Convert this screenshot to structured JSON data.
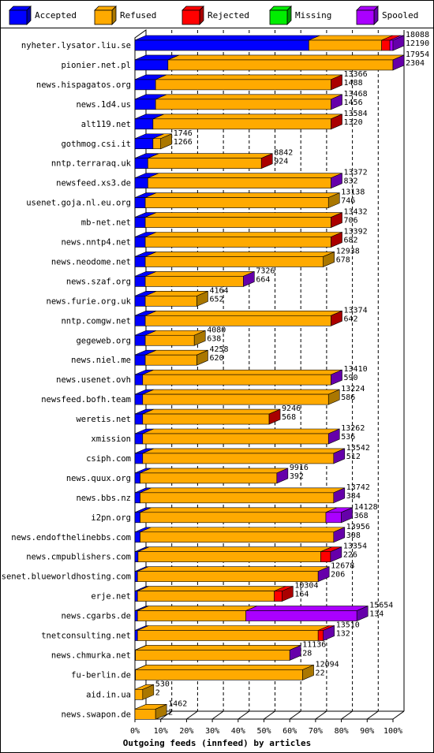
{
  "chart_data": {
    "type": "bar",
    "orientation": "horizontal",
    "stacked": true,
    "xlabel": "Outgoing feeds (innfeed) by articles",
    "xlim": [
      0,
      100
    ],
    "x_ticks": [
      "0%",
      "10%",
      "20%",
      "30%",
      "40%",
      "50%",
      "60%",
      "70%",
      "80%",
      "90%",
      "100%"
    ],
    "legend_position": "top",
    "legend": [
      {
        "key": "accepted",
        "label": "Accepted",
        "color": "#0000ff"
      },
      {
        "key": "refused",
        "label": "Refused",
        "color": "#ffaa00"
      },
      {
        "key": "rejected",
        "label": "Rejected",
        "color": "#ff0000"
      },
      {
        "key": "missing",
        "label": "Missing",
        "color": "#00ee00"
      },
      {
        "key": "spooled",
        "label": "Spooled",
        "color": "#aa00ff"
      }
    ],
    "rows": [
      {
        "name": "nyheter.lysator.liu.se",
        "total": "18088",
        "accepted": "12190",
        "pct": {
          "accepted": 67.4,
          "refused": 28.2,
          "rejected": 3.2,
          "missing": 0,
          "spooled": 1.2
        }
      },
      {
        "name": "pionier.net.pl",
        "total": "17954",
        "accepted": "2304",
        "pct": {
          "accepted": 12.8,
          "refused": 87.2,
          "rejected": 0,
          "missing": 0,
          "spooled": 0
        }
      },
      {
        "name": "news.hispagatos.org",
        "total": "13366",
        "accepted": "1488",
        "pct": {
          "accepted": 8,
          "refused": 68,
          "rejected": 0,
          "missing": 0,
          "spooled": 0
        }
      },
      {
        "name": "news.1d4.us",
        "total": "13468",
        "accepted": "1456",
        "pct": {
          "accepted": 8,
          "refused": 68,
          "rejected": 0,
          "missing": 0,
          "spooled": 0
        }
      },
      {
        "name": "alt119.net",
        "total": "13584",
        "accepted": "1320",
        "pct": {
          "accepted": 7,
          "refused": 69,
          "rejected": 0,
          "missing": 0,
          "spooled": 0
        }
      },
      {
        "name": "gothmog.csi.it",
        "total": "1746",
        "accepted": "1266",
        "pct": {
          "accepted": 7,
          "refused": 3,
          "rejected": 0,
          "missing": 0,
          "spooled": 0
        }
      },
      {
        "name": "nntp.terraraq.uk",
        "total": "8842",
        "accepted": "924",
        "pct": {
          "accepted": 5,
          "refused": 44,
          "rejected": 0,
          "missing": 0,
          "spooled": 0
        }
      },
      {
        "name": "newsfeed.xs3.de",
        "total": "13372",
        "accepted": "832",
        "pct": {
          "accepted": 5,
          "refused": 71,
          "rejected": 0,
          "missing": 0,
          "spooled": 0
        }
      },
      {
        "name": "usenet.goja.nl.eu.org",
        "total": "13138",
        "accepted": "746",
        "pct": {
          "accepted": 4,
          "refused": 71,
          "rejected": 0,
          "missing": 0,
          "spooled": 0
        }
      },
      {
        "name": "mb-net.net",
        "total": "13432",
        "accepted": "706",
        "pct": {
          "accepted": 4,
          "refused": 72,
          "rejected": 0,
          "missing": 0,
          "spooled": 0
        }
      },
      {
        "name": "news.nntp4.net",
        "total": "13392",
        "accepted": "682",
        "pct": {
          "accepted": 4,
          "refused": 72,
          "rejected": 0,
          "missing": 0,
          "spooled": 0
        }
      },
      {
        "name": "news.neodome.net",
        "total": "12938",
        "accepted": "678",
        "pct": {
          "accepted": 4,
          "refused": 69,
          "rejected": 0,
          "missing": 0,
          "spooled": 0
        }
      },
      {
        "name": "news.szaf.org",
        "total": "7326",
        "accepted": "664",
        "pct": {
          "accepted": 4,
          "refused": 38,
          "rejected": 0,
          "missing": 0,
          "spooled": 0
        }
      },
      {
        "name": "news.furie.org.uk",
        "total": "4164",
        "accepted": "652",
        "pct": {
          "accepted": 4,
          "refused": 20,
          "rejected": 0,
          "missing": 0,
          "spooled": 0
        }
      },
      {
        "name": "nntp.comgw.net",
        "total": "13374",
        "accepted": "642",
        "pct": {
          "accepted": 4,
          "refused": 72,
          "rejected": 0,
          "missing": 0,
          "spooled": 0
        }
      },
      {
        "name": "gegeweb.org",
        "total": "4080",
        "accepted": "638",
        "pct": {
          "accepted": 4,
          "refused": 19,
          "rejected": 0,
          "missing": 0,
          "spooled": 0
        }
      },
      {
        "name": "news.niel.me",
        "total": "4258",
        "accepted": "620",
        "pct": {
          "accepted": 4,
          "refused": 20,
          "rejected": 0,
          "missing": 0,
          "spooled": 0
        }
      },
      {
        "name": "news.usenet.ovh",
        "total": "13410",
        "accepted": "590",
        "pct": {
          "accepted": 3,
          "refused": 73,
          "rejected": 0,
          "missing": 0,
          "spooled": 0
        }
      },
      {
        "name": "newsfeed.bofh.team",
        "total": "13224",
        "accepted": "586",
        "pct": {
          "accepted": 3,
          "refused": 72,
          "rejected": 0,
          "missing": 0,
          "spooled": 0
        }
      },
      {
        "name": "weretis.net",
        "total": "9246",
        "accepted": "568",
        "pct": {
          "accepted": 3,
          "refused": 49,
          "rejected": 0,
          "missing": 0,
          "spooled": 0
        }
      },
      {
        "name": "xmission",
        "total": "13262",
        "accepted": "536",
        "pct": {
          "accepted": 3,
          "refused": 72,
          "rejected": 0,
          "missing": 0,
          "spooled": 0
        }
      },
      {
        "name": "csiph.com",
        "total": "13542",
        "accepted": "512",
        "pct": {
          "accepted": 3,
          "refused": 74,
          "rejected": 0,
          "missing": 0,
          "spooled": 0
        }
      },
      {
        "name": "news.quux.org",
        "total": "9916",
        "accepted": "392",
        "pct": {
          "accepted": 2,
          "refused": 53,
          "rejected": 0,
          "missing": 0,
          "spooled": 0
        }
      },
      {
        "name": "news.bbs.nz",
        "total": "13742",
        "accepted": "384",
        "pct": {
          "accepted": 2,
          "refused": 75,
          "rejected": 0,
          "missing": 0,
          "spooled": 0
        }
      },
      {
        "name": "i2pn.org",
        "total": "14128",
        "accepted": "368",
        "pct": {
          "accepted": 2,
          "refused": 72,
          "rejected": 0,
          "missing": 0,
          "spooled": 6
        }
      },
      {
        "name": "news.endofthelinebbs.com",
        "total": "13956",
        "accepted": "308",
        "pct": {
          "accepted": 2,
          "refused": 75,
          "rejected": 0,
          "missing": 0,
          "spooled": 0
        }
      },
      {
        "name": "news.cmpublishers.com",
        "total": "13354",
        "accepted": "226",
        "pct": {
          "accepted": 1.2,
          "refused": 70.8,
          "rejected": 3.8,
          "missing": 0,
          "spooled": 0
        }
      },
      {
        "name": "usenet.blueworldhosting.com",
        "total": "12678",
        "accepted": "206",
        "pct": {
          "accepted": 1,
          "refused": 70,
          "rejected": 0,
          "missing": 0,
          "spooled": 0
        }
      },
      {
        "name": "erje.net",
        "total": "10304",
        "accepted": "164",
        "pct": {
          "accepted": 1,
          "refused": 53,
          "rejected": 3,
          "missing": 0,
          "spooled": 0
        }
      },
      {
        "name": "news.cgarbs.de",
        "total": "15654",
        "accepted": "134",
        "pct": {
          "accepted": 1,
          "refused": 42,
          "rejected": 0,
          "missing": 0,
          "spooled": 43
        }
      },
      {
        "name": "tnetconsulting.net",
        "total": "13510",
        "accepted": "132",
        "pct": {
          "accepted": 1,
          "refused": 70,
          "rejected": 2,
          "missing": 0,
          "spooled": 0
        }
      },
      {
        "name": "news.chmurka.net",
        "total": "11136",
        "accepted": "28",
        "pct": {
          "accepted": 0.2,
          "refused": 59.8,
          "rejected": 0,
          "missing": 0,
          "spooled": 0
        }
      },
      {
        "name": "fu-berlin.de",
        "total": "12094",
        "accepted": "22",
        "pct": {
          "accepted": 0.2,
          "refused": 64.8,
          "rejected": 0,
          "missing": 0,
          "spooled": 0
        }
      },
      {
        "name": "aid.in.ua",
        "total": "530",
        "accepted": "2",
        "pct": {
          "accepted": 0,
          "refused": 3,
          "rejected": 0,
          "missing": 0,
          "spooled": 0
        }
      },
      {
        "name": "news.swapon.de",
        "total": "1462",
        "accepted": "2",
        "pct": {
          "accepted": 0,
          "refused": 8,
          "rejected": 0,
          "missing": 0,
          "spooled": 0
        }
      }
    ],
    "tip_colors": {
      "nyheter.lysator.liu.se": "spooled",
      "pionier.net.pl": "spooled",
      "news.hispagatos.org": "rejected",
      "news.1d4.us": "spooled",
      "alt119.net": "rejected",
      "gothmog.csi.it": "refused",
      "nntp.terraraq.uk": "rejected",
      "newsfeed.xs3.de": "spooled",
      "usenet.goja.nl.eu.org": "refused",
      "mb-net.net": "rejected",
      "news.nntp4.net": "rejected",
      "news.neodome.net": "refused",
      "news.szaf.org": "spooled",
      "news.furie.org.uk": "refused",
      "nntp.comgw.net": "rejected",
      "gegeweb.org": "refused",
      "news.niel.me": "refused",
      "news.usenet.ovh": "spooled",
      "newsfeed.bofh.team": "refused",
      "weretis.net": "rejected",
      "xmission": "spooled",
      "csiph.com": "spooled",
      "news.quux.org": "spooled",
      "news.bbs.nz": "spooled",
      "i2pn.org": "spooled",
      "news.endofthelinebbs.com": "spooled",
      "news.cmpublishers.com": "spooled",
      "usenet.blueworldhosting.com": "spooled",
      "erje.net": "rejected",
      "news.cgarbs.de": "spooled",
      "tnetconsulting.net": "spooled",
      "news.chmurka.net": "spooled",
      "fu-berlin.de": "refused",
      "aid.in.ua": "refused",
      "news.swapon.de": "refused"
    },
    "colors": {
      "accepted": "#0000ff",
      "accepted_dark": "#0000aa",
      "refused": "#ffaa00",
      "refused_dark": "#aa7700",
      "rejected": "#ff0000",
      "rejected_dark": "#aa0000",
      "missing": "#00ee00",
      "missing_dark": "#009900",
      "spooled": "#aa00ff",
      "spooled_dark": "#6600aa",
      "grid": "#000000"
    }
  }
}
